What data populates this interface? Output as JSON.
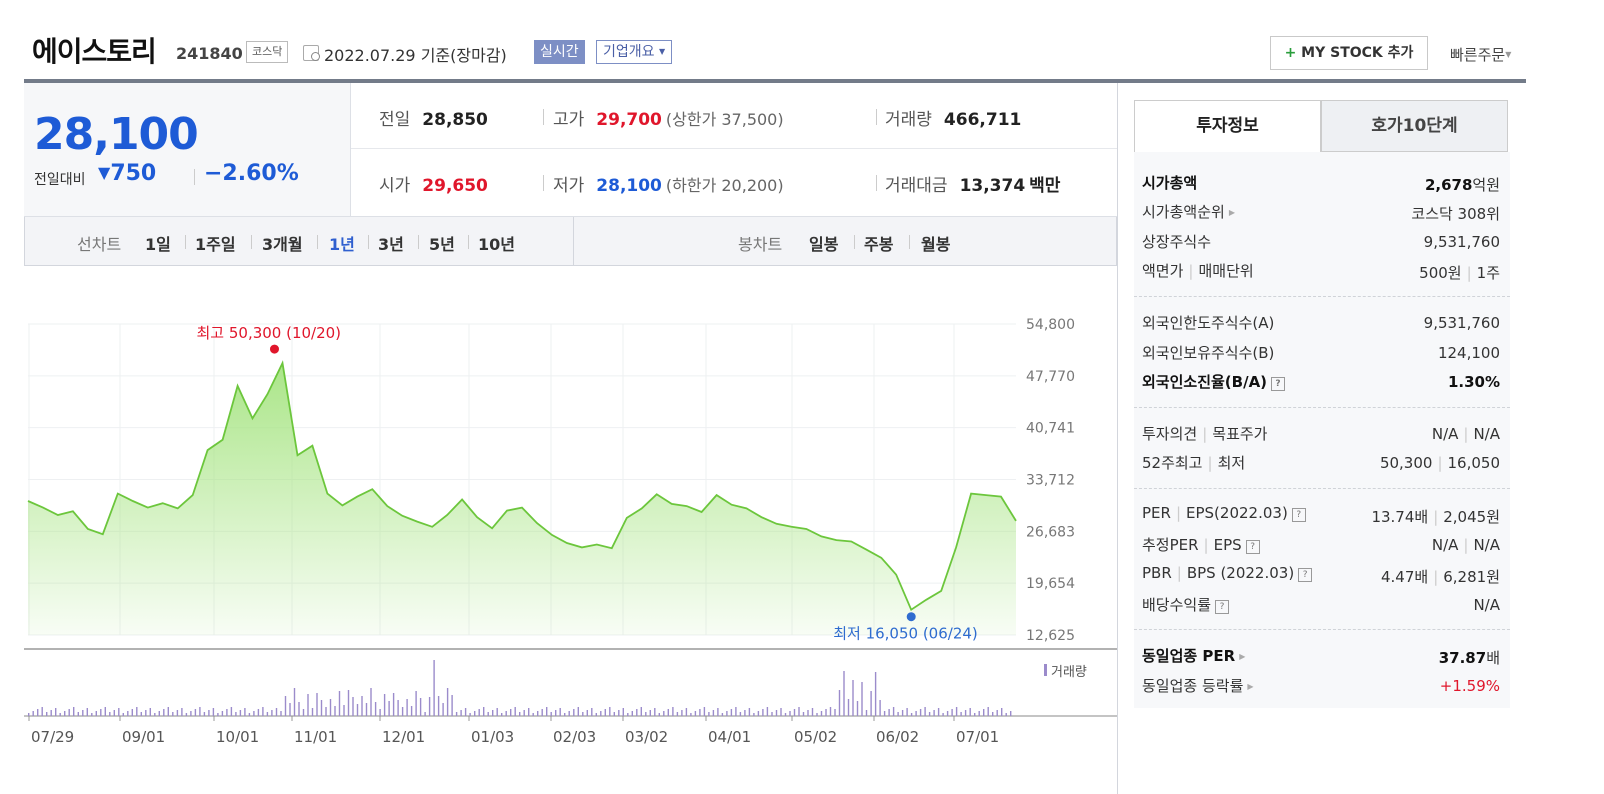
{
  "stock": {
    "name": "에이스토리",
    "code": "241840",
    "market": "코스닥",
    "date_text": "2022.07.29 기준(장마감)",
    "realtime_label": "실시간",
    "overview_label": "기업개요",
    "mystock_label": "MY STOCK 추가",
    "mystock_plus": "+",
    "quick_order_label": "빠른주문"
  },
  "price": {
    "current": "28,100",
    "change_label": "전일대비",
    "change_symbol": "▼",
    "change_value": "750",
    "change_pct": "−2.60%",
    "color": "#1e5bd6"
  },
  "stats": {
    "prev_close_label": "전일",
    "prev_close": "28,850",
    "high_label": "고가",
    "high": "29,700",
    "upper_limit": "(상한가 37,500)",
    "volume_label": "거래량",
    "volume": "466,711",
    "open_label": "시가",
    "open": "29,650",
    "low_label": "저가",
    "low": "28,100",
    "lower_limit": "(하한가 20,200)",
    "amount_label": "거래대금",
    "amount": "13,374",
    "amount_unit": "백만"
  },
  "range": {
    "line_label": "선차트",
    "line_items": [
      "1일",
      "1주일",
      "3개월",
      "1년",
      "3년",
      "5년",
      "10년"
    ],
    "active": "1년",
    "candle_label": "봉차트",
    "candle_items": [
      "일봉",
      "주봉",
      "월봉"
    ]
  },
  "chart_data": {
    "type": "area",
    "period": "1년",
    "y_ticks": [
      "54,800",
      "47,770",
      "40,741",
      "33,712",
      "26,683",
      "19,654",
      "12,625"
    ],
    "ylim": [
      12625,
      54800
    ],
    "x_labels": [
      "07/29",
      "09/01",
      "10/01",
      "11/01",
      "12/01",
      "01/03",
      "02/03",
      "03/02",
      "04/01",
      "05/02",
      "06/02",
      "07/01"
    ],
    "series": [
      {
        "values": [
          30800,
          29900,
          28900,
          29400,
          27000,
          26300,
          31800,
          30800,
          29900,
          30500,
          29800,
          31600,
          37700,
          39100,
          46400,
          42000,
          45300,
          49500,
          37000,
          38300,
          31800,
          30200,
          31400,
          32400,
          30100,
          28800,
          28000,
          27300,
          28900,
          31000,
          28600,
          27100,
          29500,
          29900,
          27800,
          26200,
          25100,
          24500,
          24900,
          24400,
          28500,
          29800,
          31700,
          30400,
          30100,
          29300,
          31600,
          30300,
          29800,
          28600,
          27700,
          27300,
          27000,
          26000,
          25500,
          25300,
          24200,
          23100,
          20800,
          16050,
          17400,
          18600,
          24500,
          31800,
          31600,
          31400,
          28100
        ]
      }
    ],
    "high_annotation": "최고 50,300 (10/20)",
    "low_annotation": "최저 16,050 (06/24)",
    "volume_label": "거래량",
    "colors": {
      "line": "#6cc63c",
      "fill": "#a6e482",
      "volume": "#9b8bcb",
      "high": "#e0162b",
      "low": "#2f6ccf"
    }
  },
  "side": {
    "tab_invest": "투자정보",
    "tab_orderbook": "호가10단계",
    "market_cap_label": "시가총액",
    "market_cap_value": "2,678",
    "market_cap_unit": "억원",
    "market_cap_rank_label": "시가총액순위",
    "market_cap_rank": "코스닥 308위",
    "shares_label": "상장주식수",
    "shares": "9,531,760",
    "face_label": "액면가",
    "unit_label": "매매단위",
    "face_value": "500원",
    "unit_value": "1주",
    "foreign_limit_label": "외국인한도주식수(A)",
    "foreign_limit": "9,531,760",
    "foreign_hold_label": "외국인보유주식수(B)",
    "foreign_hold": "124,100",
    "foreign_ratio_label": "외국인소진율(B/A)",
    "foreign_ratio": "1.30%",
    "opinion_label": "투자의견",
    "target_label": "목표주가",
    "opinion_value": "N/A",
    "target_value": "N/A",
    "w52_high_label": "52주최고",
    "w52_low_label": "최저",
    "w52_high": "50,300",
    "w52_low": "16,050",
    "per_label": "PER",
    "eps_label": "EPS(2022.03)",
    "per_value": "13.74배",
    "eps_value": "2,045원",
    "est_per_label": "추정PER",
    "est_eps_label": "EPS",
    "est_per_value": "N/A",
    "est_eps_value": "N/A",
    "pbr_label": "PBR",
    "bps_label": "BPS (2022.03)",
    "pbr_value": "4.47배",
    "bps_value": "6,281원",
    "div_label": "배당수익률",
    "div_value": "N/A",
    "sector_per_label": "동일업종 PER",
    "sector_per_value": "37.87",
    "sector_per_unit": "배",
    "sector_chg_label": "동일업종 등락률",
    "sector_chg_value": "+1.59%",
    "help_glyph": "?"
  }
}
